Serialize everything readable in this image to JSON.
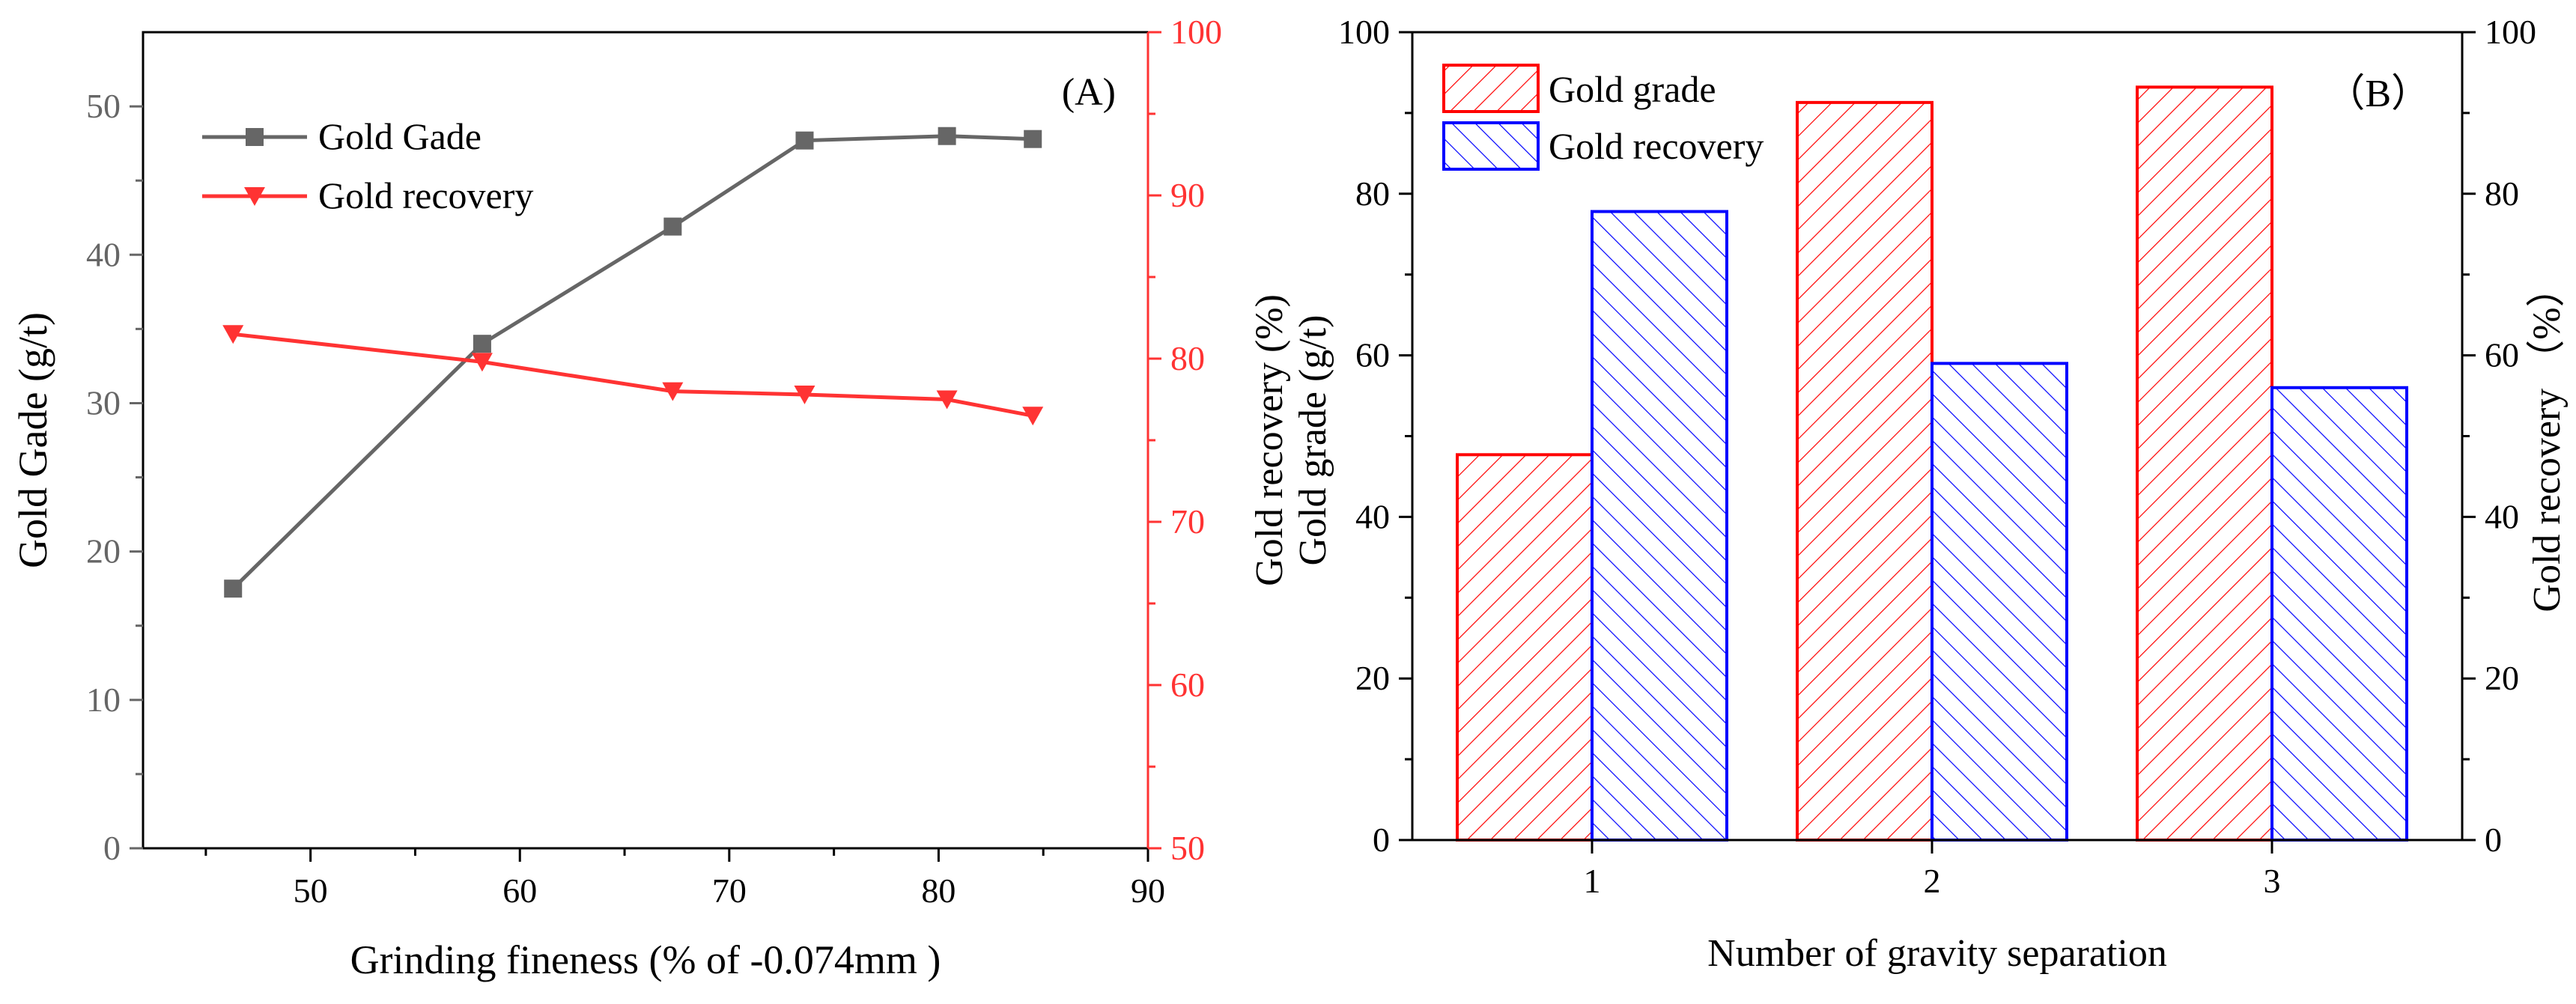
{
  "colors": {
    "grade_line": "#666666",
    "recovery_line": "#ff3333",
    "bar_grade": "#ff0000",
    "bar_recovery": "#0000ff",
    "axis_black": "#000000"
  },
  "chart_data": [
    {
      "type": "line",
      "panel_label": "(A)",
      "xlabel": "Grinding fineness (% of -0.074mm )",
      "ylabel_left": "Gold Gade (g/t)",
      "xlim": [
        42,
        90
      ],
      "ylim_left": [
        0,
        55
      ],
      "ylim_right": [
        50,
        100
      ],
      "x_ticks": [
        50,
        60,
        70,
        80,
        90
      ],
      "x_tick_labels": [
        "50",
        "60",
        "70",
        "80",
        "90"
      ],
      "y_left_ticks": [
        0,
        10,
        20,
        30,
        40,
        50
      ],
      "y_left_tick_labels": [
        "0",
        "10",
        "20",
        "30",
        "40",
        "50"
      ],
      "y_right_ticks": [
        50,
        60,
        70,
        80,
        90,
        100
      ],
      "y_right_tick_labels": [
        "50",
        "60",
        "70",
        "80",
        "90",
        "100"
      ],
      "legend_position": "top-left",
      "series": [
        {
          "name": "Gold Gade",
          "axis": "left",
          "marker": "square",
          "x": [
            46.3,
            58.2,
            67.3,
            73.6,
            80.4,
            84.5
          ],
          "y": [
            17.5,
            34.0,
            41.9,
            47.7,
            48.0,
            47.8
          ]
        },
        {
          "name": "Gold recovery",
          "axis": "right",
          "marker": "triangle-down",
          "x": [
            46.3,
            58.2,
            67.3,
            73.6,
            80.4,
            84.5
          ],
          "y": [
            81.5,
            79.8,
            78.0,
            77.8,
            77.5,
            76.5
          ]
        }
      ]
    },
    {
      "type": "bar",
      "panel_label": "（B）",
      "xlabel": "Number of gravity separation",
      "ylabel_left_lines": [
        "Gold recovery (%)",
        "Gold grade (g/t)"
      ],
      "ylabel_right": "Gold recovery （%）",
      "categories": [
        "1",
        "2",
        "3"
      ],
      "ylim_left": [
        0,
        100
      ],
      "ylim_right": [
        0,
        100
      ],
      "y_ticks": [
        0,
        20,
        40,
        60,
        80,
        100
      ],
      "y_tick_labels": [
        "0",
        "20",
        "40",
        "60",
        "80",
        "100"
      ],
      "legend_position": "top-left",
      "series": [
        {
          "name": "Gold grade",
          "hatch": "forward",
          "values": [
            47.7,
            91.3,
            93.2
          ]
        },
        {
          "name": "Gold recovery",
          "hatch": "backward",
          "values": [
            77.8,
            59.0,
            56.0
          ]
        }
      ]
    }
  ]
}
